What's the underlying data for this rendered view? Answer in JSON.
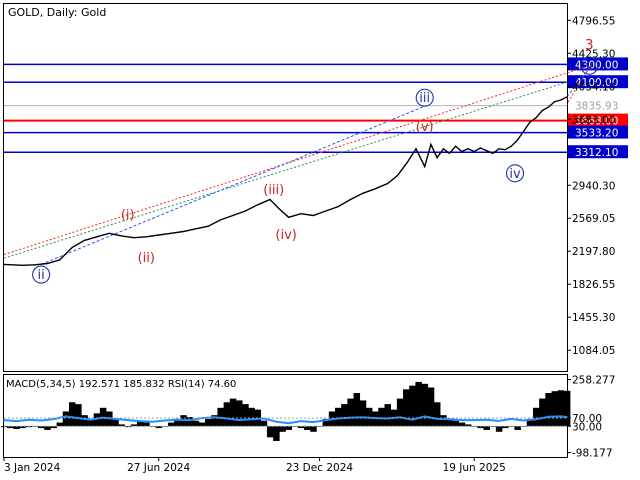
{
  "chart_title": "GOLD, Daily:  Gold",
  "colors": {
    "price": "#000000",
    "level_blue": "#0000cd",
    "level_red": "#ff0000",
    "wave_red": "#cc2222",
    "wave_blue": "#2233aa",
    "macd_hist": "#000000",
    "rsi": "#1e90ff",
    "green_dotted": "#2e8b57",
    "red_dotted": "#ff2222",
    "blue_dashed": "#2255ff"
  },
  "chart_data": [
    {
      "type": "line",
      "name": "main",
      "title": "",
      "ylim": [
        850,
        4980
      ],
      "xlim": [
        0,
        455
      ],
      "y_ticks": [
        "4796.55",
        "4425.30",
        "4054.10",
        "3683.00",
        "2940.30",
        "2569.05",
        "2197.80",
        "1826.55",
        "1455.30",
        "1084.05"
      ],
      "x_ticks": [
        {
          "x": 0,
          "label": "3 Jan 2024"
        },
        {
          "x": 125,
          "label": "27 Jun 2024"
        },
        {
          "x": 255,
          "label": "23 Dec 2024"
        },
        {
          "x": 380,
          "label": "19 Jun 2025"
        }
      ],
      "price_series": {
        "x": [
          0,
          15,
          25,
          35,
          45,
          55,
          65,
          75,
          85,
          95,
          105,
          115,
          125,
          135,
          145,
          155,
          165,
          175,
          185,
          195,
          205,
          215,
          222,
          230,
          240,
          250,
          260,
          270,
          280,
          290,
          300,
          310,
          318,
          326,
          333,
          340,
          345,
          350,
          355,
          360,
          365,
          370,
          375,
          380,
          385,
          390,
          395,
          400,
          405,
          410,
          415,
          420,
          425,
          430,
          435,
          440,
          445,
          450,
          455
        ],
        "y": [
          2050,
          2040,
          2045,
          2060,
          2100,
          2240,
          2320,
          2360,
          2400,
          2370,
          2350,
          2360,
          2380,
          2400,
          2420,
          2450,
          2480,
          2550,
          2600,
          2650,
          2720,
          2780,
          2680,
          2580,
          2620,
          2600,
          2650,
          2700,
          2780,
          2850,
          2900,
          2960,
          3050,
          3200,
          3350,
          3150,
          3400,
          3250,
          3350,
          3300,
          3380,
          3320,
          3350,
          3320,
          3360,
          3330,
          3300,
          3350,
          3340,
          3380,
          3450,
          3550,
          3650,
          3700,
          3780,
          3820,
          3880,
          3900,
          3935
        ]
      },
      "levels": [
        {
          "value": 4300.0,
          "label": "4300.00",
          "color": "level_blue"
        },
        {
          "value": 4100.0,
          "label": "4100.00",
          "color": "level_blue"
        },
        {
          "value": 3835.93,
          "label": "3835.93",
          "color": "grey"
        },
        {
          "value": 3668.0,
          "label": "3668.00",
          "color": "level_red"
        },
        {
          "value": 3533.2,
          "label": "3533.20",
          "color": "level_blue"
        },
        {
          "value": 3312.1,
          "label": "3312.10",
          "color": "level_blue"
        }
      ],
      "wave_labels": [
        {
          "label": "ii",
          "x": 30,
          "y": 1935,
          "color": "wave_blue",
          "circled": true
        },
        {
          "label": "(i)",
          "x": 100,
          "y": 2610,
          "color": "wave_red"
        },
        {
          "label": "(ii)",
          "x": 115,
          "y": 2125,
          "color": "wave_red"
        },
        {
          "label": "(iii)",
          "x": 218,
          "y": 2895,
          "color": "wave_red"
        },
        {
          "label": "(iv)",
          "x": 228,
          "y": 2385,
          "color": "wave_red"
        },
        {
          "label": "iii",
          "x": 340,
          "y": 3925,
          "color": "wave_blue",
          "circled": true
        },
        {
          "label": "(v)",
          "x": 340,
          "y": 3600,
          "color": "wave_red"
        },
        {
          "label": "iv",
          "x": 413,
          "y": 3075,
          "color": "wave_blue",
          "circled": true
        },
        {
          "label": "v",
          "x": 473,
          "y": 4285,
          "color": "wave_blue",
          "circled": true
        },
        {
          "label": "3",
          "x": 473,
          "y": 4520,
          "color": "wave_red"
        }
      ]
    },
    {
      "type": "bar",
      "name": "indicator",
      "title": "MACD(5,34,5) 192.571 185.832 RSI(14) 74.60",
      "ylim": [
        -120,
        280
      ],
      "y_ticks": [
        "258.277",
        "70.00",
        "30.00",
        "-98.177"
      ],
      "macd_histogram": {
        "x": [
          0,
          5,
          10,
          15,
          20,
          25,
          30,
          35,
          40,
          45,
          50,
          55,
          60,
          65,
          70,
          75,
          80,
          85,
          90,
          95,
          100,
          105,
          110,
          115,
          120,
          125,
          130,
          135,
          140,
          145,
          150,
          155,
          160,
          165,
          170,
          175,
          180,
          185,
          190,
          195,
          200,
          205,
          210,
          215,
          220,
          225,
          230,
          235,
          240,
          245,
          250,
          255,
          260,
          265,
          270,
          275,
          280,
          285,
          290,
          295,
          300,
          305,
          310,
          315,
          320,
          325,
          330,
          335,
          340,
          345,
          350,
          355,
          360,
          365,
          370,
          375,
          380,
          385,
          390,
          395,
          400,
          405,
          410,
          415,
          420,
          425,
          430,
          435,
          440,
          445,
          450,
          455
        ],
        "values": [
          -5,
          -10,
          -15,
          -10,
          -5,
          -3,
          -10,
          -20,
          -10,
          20,
          80,
          130,
          120,
          60,
          40,
          70,
          100,
          80,
          40,
          10,
          -5,
          10,
          30,
          20,
          0,
          -10,
          0,
          20,
          40,
          60,
          50,
          30,
          20,
          40,
          60,
          100,
          130,
          150,
          140,
          120,
          100,
          90,
          30,
          -60,
          -80,
          -30,
          -20,
          0,
          -10,
          -20,
          -30,
          0,
          40,
          80,
          100,
          120,
          150,
          180,
          140,
          100,
          80,
          100,
          120,
          90,
          150,
          200,
          220,
          240,
          230,
          210,
          130,
          60,
          40,
          30,
          20,
          10,
          0,
          -10,
          -20,
          0,
          -30,
          -10,
          0,
          -20,
          0,
          40,
          100,
          150,
          180,
          190,
          195,
          192
        ]
      },
      "rsi": {
        "x": [
          0,
          10,
          20,
          30,
          40,
          50,
          60,
          70,
          80,
          90,
          100,
          110,
          120,
          130,
          140,
          150,
          160,
          170,
          180,
          190,
          200,
          210,
          220,
          230,
          240,
          250,
          260,
          270,
          280,
          290,
          300,
          310,
          320,
          330,
          340,
          350,
          360,
          370,
          380,
          390,
          400,
          410,
          420,
          430,
          440,
          450,
          455
        ],
        "values": [
          60,
          55,
          62,
          58,
          65,
          78,
          70,
          62,
          72,
          66,
          60,
          55,
          52,
          58,
          62,
          60,
          70,
          74,
          68,
          60,
          64,
          68,
          52,
          45,
          55,
          50,
          60,
          68,
          72,
          74,
          70,
          68,
          74,
          62,
          78,
          66,
          64,
          60,
          60,
          62,
          56,
          66,
          58,
          64,
          76,
          78,
          75
        ]
      }
    }
  ]
}
